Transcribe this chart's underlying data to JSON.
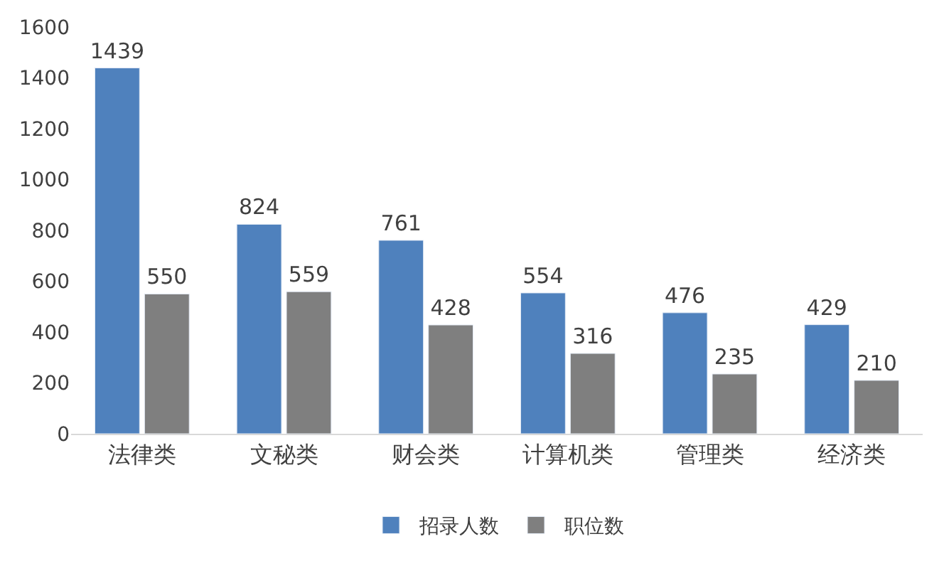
{
  "chart_data": {
    "type": "bar",
    "categories": [
      "法律类",
      "文秘类",
      "财会类",
      "计算机类",
      "管理类",
      "经济类"
    ],
    "series": [
      {
        "name": "招录人数",
        "color": "#4f81bd",
        "values": [
          1439,
          824,
          761,
          554,
          476,
          429
        ]
      },
      {
        "name": "职位数",
        "color": "#7f7f7f",
        "values": [
          550,
          559,
          428,
          316,
          235,
          210
        ]
      }
    ],
    "ylim": [
      0,
      1600
    ],
    "yticks": [
      0,
      200,
      400,
      600,
      800,
      1000,
      1200,
      1400,
      1600
    ],
    "grid": false,
    "legend": "bottom",
    "data_labels": true
  }
}
